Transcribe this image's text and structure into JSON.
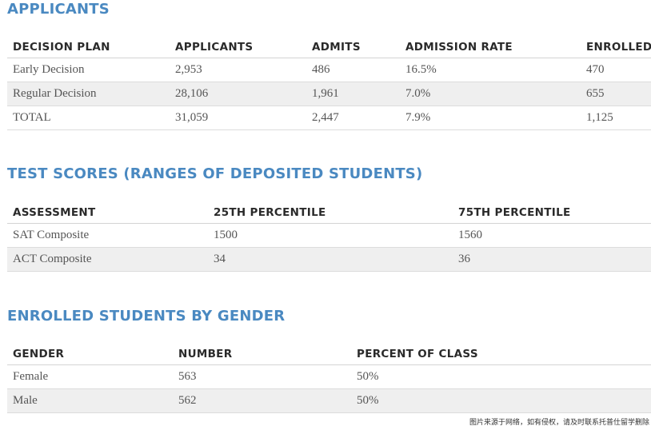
{
  "applicants": {
    "title": "APPLICANTS",
    "headers": [
      "DECISION PLAN",
      "APPLICANTS",
      "ADMITS",
      "ADMISSION RATE",
      "ENROLLED"
    ],
    "rows": [
      [
        "Early Decision",
        "2,953",
        "486",
        "16.5%",
        "470"
      ],
      [
        "Regular Decision",
        "28,106",
        "1,961",
        "7.0%",
        "655"
      ],
      [
        "TOTAL",
        "31,059",
        "2,447",
        "7.9%",
        "1,125"
      ]
    ]
  },
  "test_scores": {
    "title": "TEST SCORES (RANGES OF DEPOSITED STUDENTS)",
    "headers": [
      "ASSESSMENT",
      "25TH PERCENTILE",
      "75TH PERCENTILE"
    ],
    "rows": [
      [
        "SAT Composite",
        "1500",
        "1560"
      ],
      [
        "ACT Composite",
        "34",
        "36"
      ]
    ]
  },
  "gender": {
    "title": "ENROLLED STUDENTS BY GENDER",
    "headers": [
      "GENDER",
      "NUMBER",
      "PERCENT OF CLASS"
    ],
    "rows": [
      [
        "Female",
        "563",
        "50%"
      ],
      [
        "Male",
        "562",
        "50%"
      ]
    ]
  },
  "watermark": "图片来源于网络，如有侵权，请及时联系托普仕留学删除"
}
